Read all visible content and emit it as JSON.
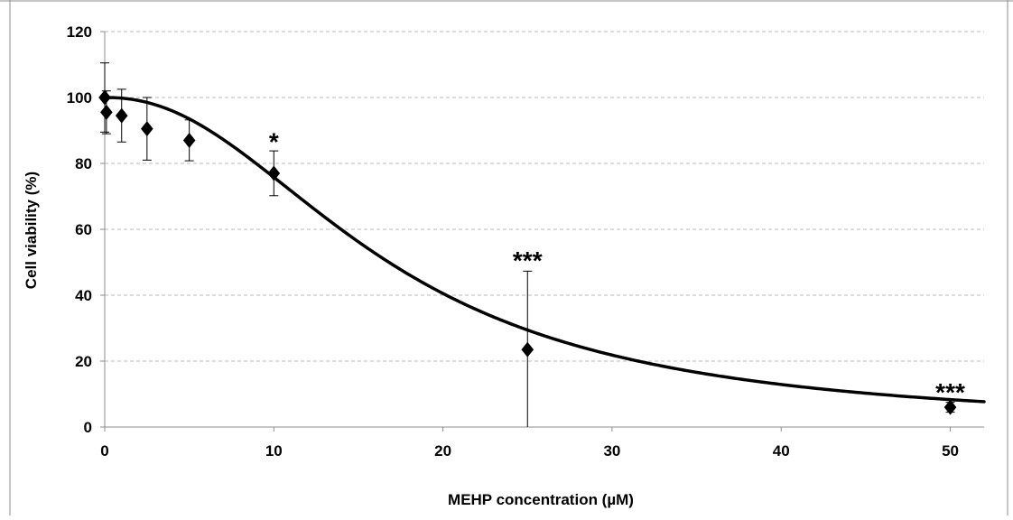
{
  "chart_data": {
    "type": "scatter",
    "title": "",
    "xlabel": "MEHP concentration (µM)",
    "ylabel": "Cell viability (%)",
    "xlim": [
      0,
      52
    ],
    "ylim": [
      0,
      120
    ],
    "x_ticks": [
      0,
      10,
      20,
      30,
      40,
      50
    ],
    "y_ticks": [
      0,
      20,
      40,
      60,
      80,
      100,
      120
    ],
    "grid": "horizontal dashed",
    "legend": "none",
    "marker": "diamond",
    "color": "#000000",
    "points": [
      {
        "x": 0,
        "y": 100,
        "error": 10.5
      },
      {
        "x": 0.1,
        "y": 95.5,
        "error": 6.5
      },
      {
        "x": 1,
        "y": 94.5,
        "error": 8
      },
      {
        "x": 2.5,
        "y": 90.5,
        "error": 9.5
      },
      {
        "x": 5,
        "y": 87,
        "error": 6.2
      },
      {
        "x": 10,
        "y": 77,
        "error": 6.8
      },
      {
        "x": 25,
        "y": 23.5,
        "error": 23.8
      },
      {
        "x": 50,
        "y": 6,
        "error": 1.5
      }
    ],
    "fit_curve": {
      "top": 100,
      "bottom": 0,
      "ec50": 16.8,
      "hill": 2.2
    },
    "annotations": [
      {
        "x": 10,
        "y": 84,
        "text": "*"
      },
      {
        "x": 25,
        "y": 48,
        "text": "***"
      },
      {
        "x": 50,
        "y": 8,
        "text": "***"
      }
    ]
  }
}
